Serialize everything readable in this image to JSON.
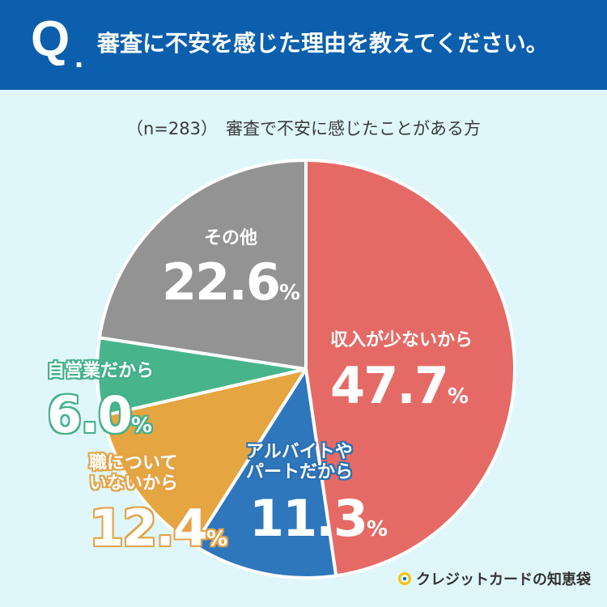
{
  "header": {
    "q_mark": "Q",
    "q_dot": ".",
    "question": "審査に不安を感じた理由を教えてください。"
  },
  "subtitle": {
    "n": "（n=283）",
    "text": "審査で不安に感じたことがある方"
  },
  "chart_data": {
    "type": "pie",
    "start_angle": "12 o'clock",
    "direction": "clockwise",
    "slices": [
      {
        "label": "収入が少ないから",
        "value": 47.7,
        "display": "47.7",
        "color": "#e56a66"
      },
      {
        "label": "アルバイトやパートだから",
        "label_lines": [
          "アルバイトや",
          "パートだから"
        ],
        "value": 11.3,
        "display": "11.3",
        "color": "#2f77bd"
      },
      {
        "label": "職についていないから",
        "label_lines": [
          "職について",
          "いないから"
        ],
        "value": 12.4,
        "display": "12.4",
        "color": "#e5a541"
      },
      {
        "label": "自営業だから",
        "value": 6.0,
        "display": "6.0",
        "color": "#47b48c"
      },
      {
        "label": "その他",
        "value": 22.6,
        "display": "22.6",
        "color": "#939393"
      }
    ],
    "percent_sign": "%"
  },
  "logo": {
    "text": "クレジットカードの知恵袋",
    "icon": "bulb-icon"
  }
}
